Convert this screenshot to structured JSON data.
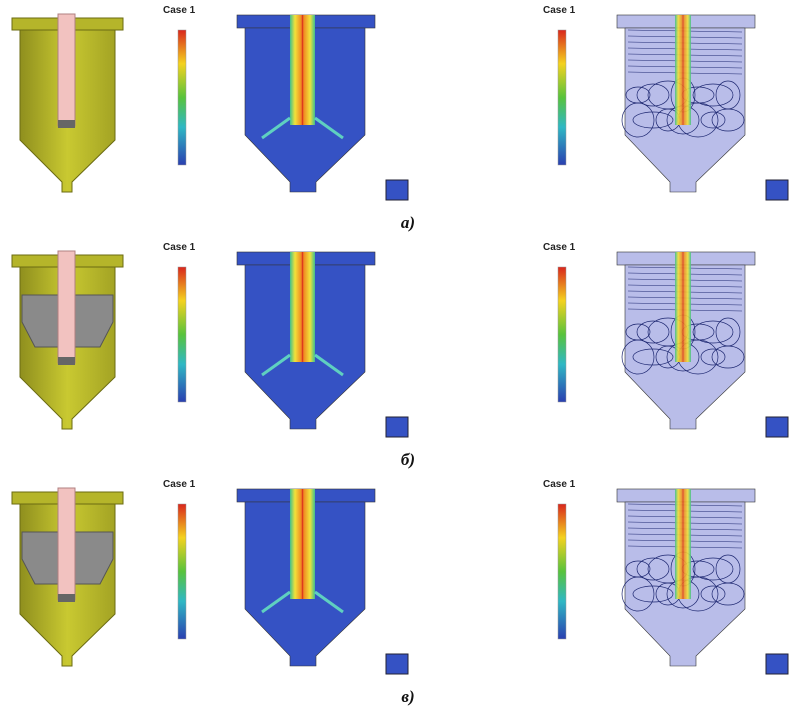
{
  "rows": [
    {
      "caption": "а)",
      "insert": false,
      "panels": [
        {
          "title": "Case 1"
        },
        {
          "title": "Case 1"
        }
      ]
    },
    {
      "caption": "б)",
      "insert": true,
      "panels": [
        {
          "title": "Case 1"
        },
        {
          "title": "Case 1"
        }
      ]
    },
    {
      "caption": "в)",
      "insert": true,
      "panels": [
        {
          "title": "Case 1"
        },
        {
          "title": "Case 1"
        }
      ]
    }
  ]
}
